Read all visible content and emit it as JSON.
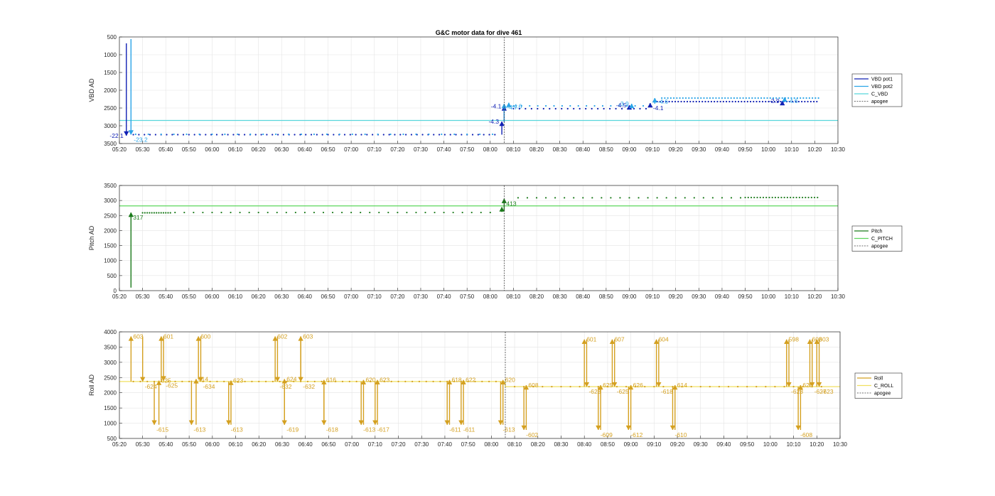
{
  "chart_data": [
    {
      "type": "line",
      "title": "G&C motor data for dive 461",
      "ylabel": "VBD AD",
      "x_time_range": [
        "05:20",
        "10:30"
      ],
      "x_ticks": [
        "05:20",
        "05:30",
        "05:40",
        "05:50",
        "06:00",
        "06:10",
        "06:20",
        "06:30",
        "06:40",
        "06:50",
        "07:00",
        "07:10",
        "07:20",
        "07:30",
        "07:40",
        "07:50",
        "08:00",
        "08:10",
        "08:20",
        "08:30",
        "08:40",
        "08:50",
        "09:00",
        "09:10",
        "09:20",
        "09:30",
        "09:40",
        "09:50",
        "10:00",
        "10:10",
        "10:20",
        "10:30"
      ],
      "y_ticks": [
        "500",
        "1000",
        "1500",
        "2000",
        "2500",
        "3000",
        "3500"
      ],
      "ylim": [
        500,
        3500
      ],
      "y_reversed": true,
      "grid": true,
      "legend_position": "right",
      "legend": [
        "VBD pot1",
        "VBD pot2",
        "C_VBD",
        "apogee"
      ],
      "colors": {
        "pot1": "#1020b4",
        "pot2": "#2aa4e8",
        "cvbd": "#58d6dc",
        "apogee": "#404040"
      },
      "apogee_time": "08:06",
      "c_vbd_steps": [
        {
          "from": "05:20",
          "to": "08:06",
          "value": 2850
        },
        {
          "from": "08:06",
          "to": "10:30",
          "value": 2850
        }
      ],
      "arrows": [
        {
          "series": "pot1",
          "time": "05:23",
          "from": 680,
          "to": 3280,
          "label": "-22.1",
          "label_side": "left"
        },
        {
          "series": "pot2",
          "time": "05:25",
          "from": 560,
          "to": 3250,
          "label": "-23.2",
          "label_side": "below"
        },
        {
          "series": "pot1",
          "time": "08:05",
          "from": 3250,
          "to": 2880,
          "label": "-4.3",
          "label_side": "left"
        },
        {
          "series": "pot1",
          "time": "08:06",
          "from": 2880,
          "to": 2450,
          "label": "-4.1",
          "label_side": "left"
        },
        {
          "series": "pot2",
          "time": "08:06",
          "from": 2900,
          "to": 2380,
          "label": "-4.7",
          "label_side": "right"
        },
        {
          "series": "pot2",
          "time": "08:08",
          "from": 2420,
          "to": 2350,
          "label": "-4.6",
          "label_side": "right"
        },
        {
          "series": "pot1",
          "time": "09:00",
          "from": 2480,
          "to": 2420,
          "label": "-4.5",
          "label_side": "left"
        },
        {
          "series": "pot2",
          "time": "09:01",
          "from": 2480,
          "to": 2380,
          "label": "-3.9",
          "label_side": "left"
        },
        {
          "series": "pot1",
          "time": "09:09",
          "from": 2440,
          "to": 2360,
          "label": "-4.1",
          "label_side": "below"
        },
        {
          "series": "pot2",
          "time": "09:11",
          "from": 2380,
          "to": 2220,
          "label": "-4.6",
          "label_side": "right"
        },
        {
          "series": "pot1",
          "time": "10:06",
          "from": 2360,
          "to": 2300,
          "label": "-2.9",
          "label_side": "left"
        },
        {
          "series": "pot2",
          "time": "10:07",
          "from": 2300,
          "to": 2200,
          "label": "-4.6",
          "label_side": "right"
        }
      ],
      "dot_runs": [
        {
          "series": "pot1",
          "from": "05:26",
          "to": "08:04",
          "value": 3250,
          "step_min": 2.4
        },
        {
          "series": "pot2",
          "from": "05:27",
          "to": "08:04",
          "value": 3240,
          "step_min": 5.5
        },
        {
          "series": "pot1",
          "from": "08:10",
          "to": "09:08",
          "value": 2520,
          "step_min": 2.6
        },
        {
          "series": "pot2",
          "from": "08:10",
          "to": "09:08",
          "value": 2440,
          "step_min": 3.5
        },
        {
          "series": "pot1",
          "from": "09:12",
          "to": "10:22",
          "value": 2320,
          "step_min": 1.3
        },
        {
          "series": "pot2",
          "from": "09:14",
          "to": "10:22",
          "value": 2220,
          "step_min": 1.3
        }
      ]
    },
    {
      "type": "line",
      "ylabel": "Pitch AD",
      "x_time_range": [
        "05:20",
        "10:30"
      ],
      "x_ticks": [
        "05:20",
        "05:30",
        "05:40",
        "05:50",
        "06:00",
        "06:10",
        "06:20",
        "06:30",
        "06:40",
        "06:50",
        "07:00",
        "07:10",
        "07:20",
        "07:30",
        "07:40",
        "07:50",
        "08:00",
        "08:10",
        "08:20",
        "08:30",
        "08:40",
        "08:50",
        "09:00",
        "09:10",
        "09:20",
        "09:30",
        "09:40",
        "09:50",
        "10:00",
        "10:10",
        "10:20",
        "10:30"
      ],
      "y_ticks": [
        "0",
        "500",
        "1000",
        "1500",
        "2000",
        "2500",
        "3000",
        "3500"
      ],
      "ylim": [
        0,
        3500
      ],
      "y_reversed": false,
      "grid": true,
      "legend_position": "right",
      "legend": [
        "Pitch",
        "C_PITCH",
        "apogee"
      ],
      "colors": {
        "pitch": "#1a7a1a",
        "cpitch": "#5cd65c",
        "apogee": "#404040"
      },
      "apogee_time": "08:06",
      "c_pitch_steps": [
        {
          "from": "05:20",
          "to": "08:06",
          "value": 2820
        },
        {
          "from": "08:06",
          "to": "10:30",
          "value": 2820
        }
      ],
      "arrows": [
        {
          "series": "pitch",
          "time": "05:25",
          "from": 100,
          "to": 2600,
          "label": "317",
          "label_side": "below-right"
        },
        {
          "series": "pitch",
          "time": "08:05",
          "from": 2620,
          "to": 2780,
          "label": "",
          "label_side": "none"
        },
        {
          "series": "pitch",
          "time": "08:06",
          "from": 2650,
          "to": 3060,
          "label": "413",
          "label_side": "below-right"
        }
      ],
      "dot_runs": [
        {
          "series": "pitch",
          "from": "05:30",
          "to": "05:42",
          "value": 2590,
          "step_min": 1.0
        },
        {
          "series": "pitch",
          "from": "05:44",
          "to": "08:02",
          "value": 2600,
          "step_min": 4.0
        },
        {
          "series": "pitch",
          "from": "08:12",
          "to": "09:48",
          "value": 3090,
          "step_min": 4.0
        },
        {
          "series": "pitch",
          "from": "09:50",
          "to": "10:22",
          "value": 3100,
          "step_min": 1.3
        }
      ]
    },
    {
      "type": "line",
      "ylabel": "Roll AD",
      "x_time_range": [
        "05:20",
        "10:30"
      ],
      "x_ticks": [
        "05:20",
        "05:30",
        "05:40",
        "05:50",
        "06:00",
        "06:10",
        "06:20",
        "06:30",
        "06:40",
        "06:50",
        "07:00",
        "07:10",
        "07:20",
        "07:30",
        "07:40",
        "07:50",
        "08:00",
        "08:10",
        "08:20",
        "08:30",
        "08:40",
        "08:50",
        "09:00",
        "09:10",
        "09:20",
        "09:30",
        "09:40",
        "09:50",
        "10:00",
        "10:10",
        "10:20",
        "10:30"
      ],
      "y_ticks": [
        "500",
        "1000",
        "1500",
        "2000",
        "2500",
        "3000",
        "3500",
        "4000"
      ],
      "ylim": [
        500,
        4000
      ],
      "y_reversed": false,
      "grid": true,
      "legend_position": "right",
      "legend": [
        "Roll",
        "C_ROLL",
        "apogee"
      ],
      "colors": {
        "roll": "#d4a020",
        "croll": "#f0e060",
        "apogee": "#404040"
      },
      "apogee_time": "08:06",
      "c_roll_steps": [
        {
          "from": "05:20",
          "to": "08:06",
          "value": 2370
        },
        {
          "from": "08:06",
          "to": "10:30",
          "value": 2200
        }
      ],
      "arrows": [
        {
          "time": "05:25",
          "from": 2370,
          "to": 3850,
          "label": "603",
          "label_side": "top-right"
        },
        {
          "time": "05:30",
          "from": 3850,
          "to": 2370,
          "label": "-624",
          "label_side": "below-right"
        },
        {
          "time": "05:35",
          "from": 2370,
          "to": 950,
          "label": "-615",
          "label_side": "below-right"
        },
        {
          "time": "05:37",
          "from": 950,
          "to": 2400,
          "label": "625",
          "label_side": "top-right"
        },
        {
          "time": "05:38",
          "from": 2400,
          "to": 3850,
          "label": "601",
          "label_side": "top-right"
        },
        {
          "time": "05:39",
          "from": 3850,
          "to": 2400,
          "label": "-625",
          "label_side": "below-right"
        },
        {
          "time": "05:51",
          "from": 2400,
          "to": 950,
          "label": "-613",
          "label_side": "below-right"
        },
        {
          "time": "05:53",
          "from": 950,
          "to": 2450,
          "label": "614",
          "label_side": "top-right"
        },
        {
          "time": "05:54",
          "from": 2450,
          "to": 3850,
          "label": "600",
          "label_side": "top-right"
        },
        {
          "time": "05:55",
          "from": 3850,
          "to": 2370,
          "label": "-634",
          "label_side": "below-right"
        },
        {
          "time": "06:07",
          "from": 2370,
          "to": 950,
          "label": "-613",
          "label_side": "below-right"
        },
        {
          "time": "06:08",
          "from": 950,
          "to": 2400,
          "label": "623",
          "label_side": "top-right"
        },
        {
          "time": "06:27",
          "from": 2370,
          "to": 3850,
          "label": "602",
          "label_side": "top-right"
        },
        {
          "time": "06:28",
          "from": 3850,
          "to": 2370,
          "label": "-632",
          "label_side": "below-right"
        },
        {
          "time": "06:31",
          "from": 2370,
          "to": 950,
          "label": "-619",
          "label_side": "below-right"
        },
        {
          "time": "06:31",
          "from": 950,
          "to": 2450,
          "label": "624",
          "label_side": "top-right"
        },
        {
          "time": "06:38",
          "from": 2370,
          "to": 3850,
          "label": "603",
          "label_side": "top-right"
        },
        {
          "time": "06:38",
          "from": 3850,
          "to": 2370,
          "label": "-632",
          "label_side": "below-right"
        },
        {
          "time": "06:48",
          "from": 2370,
          "to": 950,
          "label": "-618",
          "label_side": "below-right"
        },
        {
          "time": "06:48",
          "from": 950,
          "to": 2420,
          "label": "616",
          "label_side": "top-right"
        },
        {
          "time": "07:04",
          "from": 2370,
          "to": 950,
          "label": "-613",
          "label_side": "below-right"
        },
        {
          "time": "07:05",
          "from": 950,
          "to": 2420,
          "label": "620",
          "label_side": "top-right"
        },
        {
          "time": "07:10",
          "from": 2370,
          "to": 950,
          "label": "-617",
          "label_side": "below-right"
        },
        {
          "time": "07:11",
          "from": 950,
          "to": 2420,
          "label": "623",
          "label_side": "top-right"
        },
        {
          "time": "07:41",
          "from": 2370,
          "to": 950,
          "label": "-611",
          "label_side": "below-right"
        },
        {
          "time": "07:42",
          "from": 950,
          "to": 2420,
          "label": "618",
          "label_side": "top-right"
        },
        {
          "time": "07:47",
          "from": 2370,
          "to": 950,
          "label": "-611",
          "label_side": "below-right"
        },
        {
          "time": "07:48",
          "from": 950,
          "to": 2420,
          "label": "622",
          "label_side": "top-right"
        },
        {
          "time": "08:04",
          "from": 2370,
          "to": 950,
          "label": "-613",
          "label_side": "below-right"
        },
        {
          "time": "08:05",
          "from": 950,
          "to": 2420,
          "label": "620",
          "label_side": "top-right"
        },
        {
          "time": "08:14",
          "from": 2200,
          "to": 780,
          "label": "-602",
          "label_side": "below-right"
        },
        {
          "time": "08:15",
          "from": 780,
          "to": 2250,
          "label": "608",
          "label_side": "top-right"
        },
        {
          "time": "08:40",
          "from": 2200,
          "to": 3750,
          "label": "601",
          "label_side": "top-right"
        },
        {
          "time": "08:41",
          "from": 3750,
          "to": 2200,
          "label": "-623",
          "label_side": "below-right"
        },
        {
          "time": "08:46",
          "from": 2200,
          "to": 780,
          "label": "-609",
          "label_side": "below-right"
        },
        {
          "time": "08:47",
          "from": 780,
          "to": 2250,
          "label": "625",
          "label_side": "top-right"
        },
        {
          "time": "08:52",
          "from": 2200,
          "to": 3750,
          "label": "607",
          "label_side": "top-right"
        },
        {
          "time": "08:53",
          "from": 3750,
          "to": 2200,
          "label": "-625",
          "label_side": "below-right"
        },
        {
          "time": "08:59",
          "from": 2200,
          "to": 780,
          "label": "-612",
          "label_side": "below-right"
        },
        {
          "time": "09:00",
          "from": 780,
          "to": 2250,
          "label": "626",
          "label_side": "top-right"
        },
        {
          "time": "09:11",
          "from": 2200,
          "to": 3750,
          "label": "604",
          "label_side": "top-right"
        },
        {
          "time": "09:12",
          "from": 3750,
          "to": 2200,
          "label": "-618",
          "label_side": "below-right"
        },
        {
          "time": "09:18",
          "from": 2200,
          "to": 780,
          "label": "-610",
          "label_side": "below-right"
        },
        {
          "time": "09:19",
          "from": 780,
          "to": 2250,
          "label": "614",
          "label_side": "top-right"
        },
        {
          "time": "10:07",
          "from": 2200,
          "to": 3750,
          "label": "598",
          "label_side": "top-right"
        },
        {
          "time": "10:08",
          "from": 3750,
          "to": 2200,
          "label": "-623",
          "label_side": "below-right"
        },
        {
          "time": "10:12",
          "from": 2200,
          "to": 780,
          "label": "-608",
          "label_side": "below-right"
        },
        {
          "time": "10:13",
          "from": 780,
          "to": 2250,
          "label": "625",
          "label_side": "top-right"
        },
        {
          "time": "10:17",
          "from": 2200,
          "to": 3750,
          "label": "608",
          "label_side": "top-right"
        },
        {
          "time": "10:18",
          "from": 3750,
          "to": 2200,
          "label": "-627",
          "label_side": "below-right"
        },
        {
          "time": "10:20",
          "from": 2200,
          "to": 3750,
          "label": "603",
          "label_side": "top-right"
        },
        {
          "time": "10:21",
          "from": 3750,
          "to": 2200,
          "label": "-623",
          "label_side": "below-right"
        }
      ],
      "dot_runs": [
        {
          "series": "roll",
          "from": "05:26",
          "to": "08:04",
          "value": 2370,
          "step_min": 3.0
        },
        {
          "series": "roll",
          "from": "08:10",
          "to": "10:22",
          "value": 2200,
          "step_min": 4.0
        }
      ]
    }
  ]
}
